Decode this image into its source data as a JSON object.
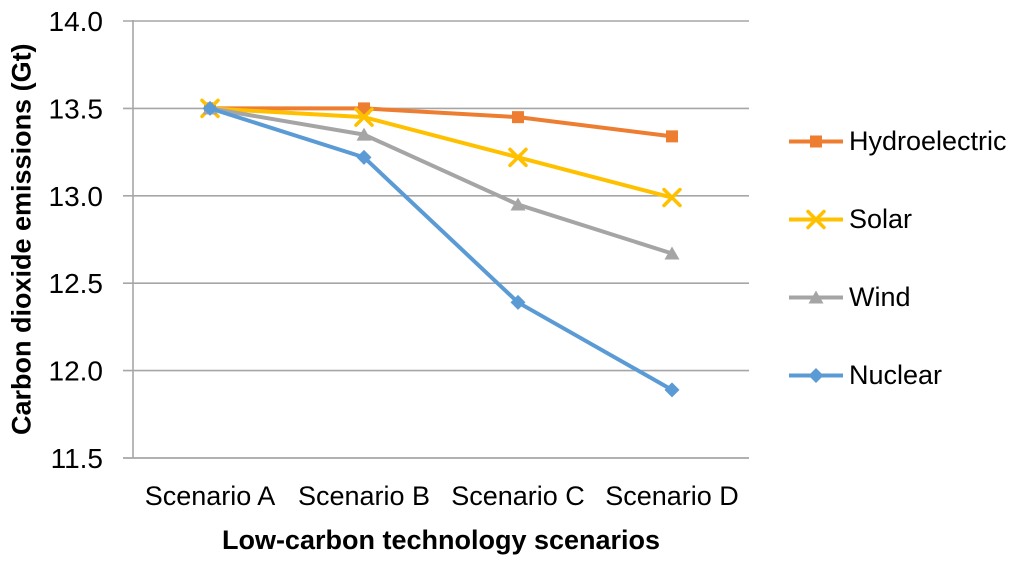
{
  "chart_data": {
    "type": "line",
    "categories": [
      "Scenario A",
      "Scenario B",
      "Scenario C",
      "Scenario D"
    ],
    "series": [
      {
        "name": "Hydroelectric",
        "values": [
          13.5,
          13.5,
          13.45,
          13.34
        ],
        "color": "#ED7D31",
        "marker": "square"
      },
      {
        "name": "Solar",
        "values": [
          13.5,
          13.45,
          13.22,
          12.99
        ],
        "color": "#FFC000",
        "marker": "x"
      },
      {
        "name": "Wind",
        "values": [
          13.5,
          13.35,
          12.95,
          12.67
        ],
        "color": "#A5A5A5",
        "marker": "triangle"
      },
      {
        "name": "Nuclear",
        "values": [
          13.5,
          13.22,
          12.39,
          11.89
        ],
        "color": "#5B9BD5",
        "marker": "diamond"
      }
    ],
    "xlabel": "Low-carbon technology scenarios",
    "ylabel": "Carbon dioxide emissions (Gt)",
    "ylim": [
      11.5,
      14.0
    ],
    "yticks": [
      14.0,
      13.5,
      13.0,
      12.5,
      12.0,
      11.5
    ],
    "ytick_format_decimals": 1,
    "grid": "horizontal",
    "legend_position": "right",
    "colors": {
      "gridline": "#A6A6A6",
      "axis": "#A6A6A6",
      "text": "#000000",
      "background": "#FFFFFF"
    }
  }
}
